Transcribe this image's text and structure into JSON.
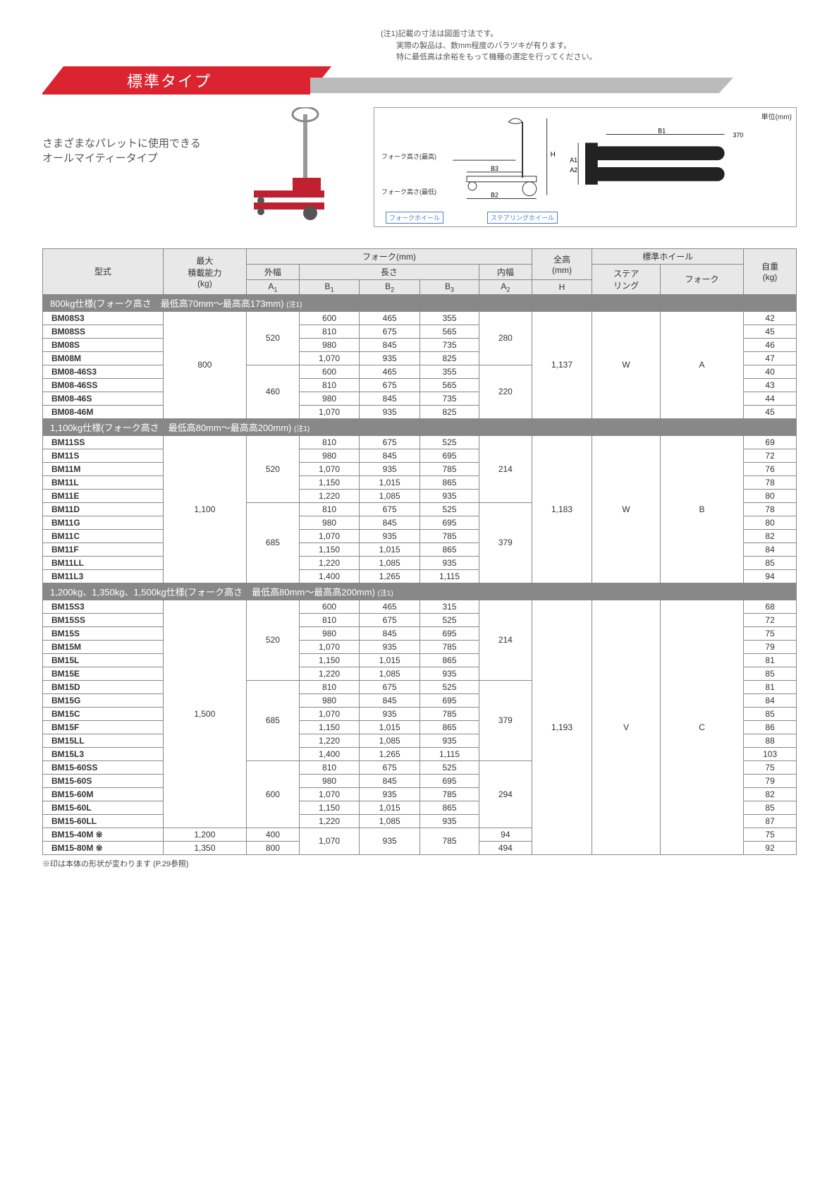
{
  "top_note_l1": "(注1)記載の寸法は図面寸法です。",
  "top_note_l2": "　　実際の製品は、数mm程度のバラツキが有ります。",
  "top_note_l3": "　　特に最低高は余裕をもって機種の選定を行ってください。",
  "banner_title": "標準タイプ",
  "hero_line1": "さまざまなパレットに使用できる",
  "hero_line2": "オールマイティータイプ",
  "diagram_unit": "単位(mm)",
  "diagram_labels": {
    "fork_high": "フォーク高さ(最高)",
    "fork_low": "フォーク高さ(最低)",
    "fork_wheel": "フォークホイール",
    "steer_wheel": "ステアリングホイール",
    "b1": "B1",
    "b2": "B2",
    "b3": "B3",
    "h": "H",
    "a1": "A1",
    "a2": "A2",
    "w370": "370"
  },
  "header": {
    "model": "型式",
    "capacity": "最大\n積載能力\n(kg)",
    "fork": "フォーク(mm)",
    "outer": "外幅",
    "length": "長さ",
    "inner": "内幅",
    "a1": "A1",
    "b1": "B1",
    "b2": "B2",
    "b3": "B3",
    "a2": "A2",
    "height": "全高\n(mm)",
    "h": "H",
    "wheel": "標準ホイール",
    "steer": "ステア\nリング",
    "forkw": "フォーク",
    "weight": "自重\n(kg)"
  },
  "sections": [
    {
      "title": "800kg仕様(フォーク高さ　最低高70mm～最高高173mm)",
      "note": "(注1)",
      "rows": [
        {
          "model": "BM08S3",
          "cap": "800",
          "a1": "520",
          "b1": "600",
          "b2": "465",
          "b3": "355",
          "a2": "280",
          "h": "1,137",
          "sw": "W",
          "fw": "A",
          "wt": "42"
        },
        {
          "model": "BM08SS",
          "b1": "810",
          "b2": "675",
          "b3": "565",
          "wt": "45"
        },
        {
          "model": "BM08S",
          "b1": "980",
          "b2": "845",
          "b3": "735",
          "wt": "46"
        },
        {
          "model": "BM08M",
          "b1": "1,070",
          "b2": "935",
          "b3": "825",
          "wt": "47"
        },
        {
          "model": "BM08-46S3",
          "a1": "460",
          "b1": "600",
          "b2": "465",
          "b3": "355",
          "a2": "220",
          "wt": "40"
        },
        {
          "model": "BM08-46SS",
          "b1": "810",
          "b2": "675",
          "b3": "565",
          "wt": "43"
        },
        {
          "model": "BM08-46S",
          "b1": "980",
          "b2": "845",
          "b3": "735",
          "wt": "44"
        },
        {
          "model": "BM08-46M",
          "b1": "1,070",
          "b2": "935",
          "b3": "825",
          "wt": "45"
        }
      ]
    },
    {
      "title": "1,100kg仕様(フォーク高さ　最低高80mm～最高高200mm)",
      "note": "(注1)",
      "rows": [
        {
          "model": "BM11SS",
          "cap": "1,100",
          "a1": "520",
          "b1": "810",
          "b2": "675",
          "b3": "525",
          "a2": "214",
          "h": "1,183",
          "sw": "W",
          "fw": "B",
          "wt": "69"
        },
        {
          "model": "BM11S",
          "b1": "980",
          "b2": "845",
          "b3": "695",
          "wt": "72"
        },
        {
          "model": "BM11M",
          "b1": "1,070",
          "b2": "935",
          "b3": "785",
          "wt": "76"
        },
        {
          "model": "BM11L",
          "b1": "1,150",
          "b2": "1,015",
          "b3": "865",
          "wt": "78"
        },
        {
          "model": "BM11E",
          "b1": "1,220",
          "b2": "1,085",
          "b3": "935",
          "wt": "80"
        },
        {
          "model": "BM11D",
          "a1": "685",
          "b1": "810",
          "b2": "675",
          "b3": "525",
          "a2": "379",
          "wt": "78"
        },
        {
          "model": "BM11G",
          "b1": "980",
          "b2": "845",
          "b3": "695",
          "wt": "80"
        },
        {
          "model": "BM11C",
          "b1": "1,070",
          "b2": "935",
          "b3": "785",
          "wt": "82"
        },
        {
          "model": "BM11F",
          "b1": "1,150",
          "b2": "1,015",
          "b3": "865",
          "wt": "84"
        },
        {
          "model": "BM11LL",
          "b1": "1,220",
          "b2": "1,085",
          "b3": "935",
          "wt": "85"
        },
        {
          "model": "BM11L3",
          "b1": "1,400",
          "b2": "1,265",
          "b3": "1,115",
          "wt": "94"
        }
      ]
    },
    {
      "title": "1,200kg、1,350kg、1,500kg仕様(フォーク高さ　最低高80mm～最高高200mm)",
      "note": "(注1)",
      "rows": [
        {
          "model": "BM15S3",
          "cap": "1,500",
          "a1": "520",
          "b1": "600",
          "b2": "465",
          "b3": "315",
          "a2": "214",
          "h": "1,193",
          "sw": "V",
          "fw": "C",
          "wt": "68"
        },
        {
          "model": "BM15SS",
          "b1": "810",
          "b2": "675",
          "b3": "525",
          "wt": "72"
        },
        {
          "model": "BM15S",
          "b1": "980",
          "b2": "845",
          "b3": "695",
          "wt": "75"
        },
        {
          "model": "BM15M",
          "b1": "1,070",
          "b2": "935",
          "b3": "785",
          "wt": "79"
        },
        {
          "model": "BM15L",
          "b1": "1,150",
          "b2": "1,015",
          "b3": "865",
          "wt": "81"
        },
        {
          "model": "BM15E",
          "b1": "1,220",
          "b2": "1,085",
          "b3": "935",
          "wt": "85"
        },
        {
          "model": "BM15D",
          "a1": "685",
          "b1": "810",
          "b2": "675",
          "b3": "525",
          "a2": "379",
          "wt": "81"
        },
        {
          "model": "BM15G",
          "b1": "980",
          "b2": "845",
          "b3": "695",
          "wt": "84"
        },
        {
          "model": "BM15C",
          "b1": "1,070",
          "b2": "935",
          "b3": "785",
          "wt": "85"
        },
        {
          "model": "BM15F",
          "b1": "1,150",
          "b2": "1,015",
          "b3": "865",
          "wt": "86"
        },
        {
          "model": "BM15LL",
          "b1": "1,220",
          "b2": "1,085",
          "b3": "935",
          "wt": "88"
        },
        {
          "model": "BM15L3",
          "b1": "1,400",
          "b2": "1,265",
          "b3": "1,115",
          "wt": "103"
        },
        {
          "model": "BM15-60SS",
          "a1": "600",
          "b1": "810",
          "b2": "675",
          "b3": "525",
          "a2": "294",
          "wt": "75"
        },
        {
          "model": "BM15-60S",
          "b1": "980",
          "b2": "845",
          "b3": "695",
          "wt": "79"
        },
        {
          "model": "BM15-60M",
          "b1": "1,070",
          "b2": "935",
          "b3": "785",
          "wt": "82"
        },
        {
          "model": "BM15-60L",
          "b1": "1,150",
          "b2": "1,015",
          "b3": "865",
          "wt": "85"
        },
        {
          "model": "BM15-60LL",
          "b1": "1,220",
          "b2": "1,085",
          "b3": "935",
          "wt": "87"
        },
        {
          "model": "BM15-40M ※",
          "cap": "1,200",
          "a1": "400",
          "b1": "1,070",
          "b2": "935",
          "b3": "785",
          "a2": "94",
          "wt": "75",
          "b1span": 2,
          "b2span": 2,
          "b3span": 2
        },
        {
          "model": "BM15-80M ※",
          "cap": "1,350",
          "a1": "800",
          "a2": "494",
          "wt": "92"
        }
      ]
    }
  ],
  "footnote": "※印は本体の形状が変わります (P.29参照)"
}
